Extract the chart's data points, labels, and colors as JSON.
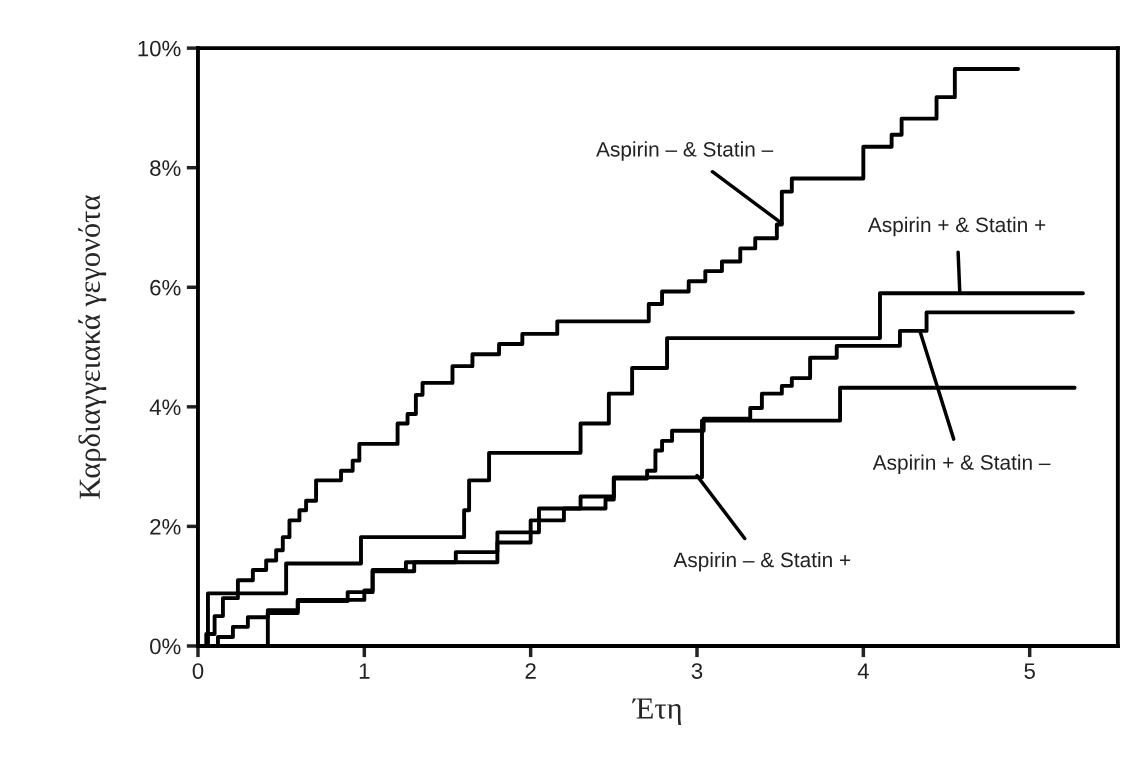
{
  "chart_data": {
    "type": "step",
    "xlabel": "Έτη",
    "ylabel": "Καρδιαγγειακά γεγονότα",
    "xlim": [
      0,
      5.53
    ],
    "xticks": [
      0,
      1,
      2,
      3,
      4,
      5
    ],
    "ylim": [
      0,
      10
    ],
    "yticks": [
      {
        "value": 0,
        "label": "0%"
      },
      {
        "value": 2,
        "label": "2%"
      },
      {
        "value": 4,
        "label": "4%"
      },
      {
        "value": 6,
        "label": "6%"
      },
      {
        "value": 8,
        "label": "8%"
      },
      {
        "value": 10,
        "label": "10%"
      }
    ],
    "grid": false,
    "legend": false,
    "line_style": "solid",
    "marker": "none",
    "series": [
      {
        "color": "#000000",
        "x": [
          0,
          0.05,
          0.1,
          0.15,
          0.24,
          0.33,
          0.41,
          0.47,
          0.51,
          0.55,
          0.61,
          0.65,
          0.71,
          0.86,
          0.93,
          0.97,
          1.2,
          1.26,
          1.31,
          1.35,
          1.53,
          1.65,
          1.81,
          1.95,
          2.16,
          2.71,
          2.79,
          2.95,
          3.05,
          3.15,
          3.26,
          3.35,
          3.48,
          3.51,
          3.57,
          4.0,
          4.17,
          4.23,
          4.44,
          4.55,
          4.93
        ],
        "values": [
          0,
          0.2,
          0.5,
          0.8,
          1.1,
          1.27,
          1.43,
          1.6,
          1.82,
          2.1,
          2.27,
          2.43,
          2.77,
          2.93,
          3.1,
          3.38,
          3.72,
          3.88,
          4.2,
          4.4,
          4.68,
          4.88,
          5.05,
          5.22,
          5.43,
          5.72,
          5.93,
          6.1,
          6.27,
          6.43,
          6.65,
          6.82,
          7.05,
          7.6,
          7.82,
          8.35,
          8.55,
          8.82,
          9.18,
          9.65,
          9.65
        ]
      },
      {
        "color": "#000000",
        "x": [
          0,
          0.06,
          0.53,
          0.98,
          1.6,
          1.63,
          1.75,
          2.3,
          2.47,
          2.61,
          2.82,
          4.1,
          5.32
        ],
        "values": [
          0,
          0.88,
          1.38,
          1.82,
          2.27,
          2.77,
          3.23,
          3.72,
          4.22,
          4.65,
          5.15,
          5.9,
          5.9
        ]
      },
      {
        "color": "#000000",
        "x": [
          0,
          0.12,
          0.21,
          0.3,
          0.42,
          0.6,
          1.0,
          1.05,
          1.25,
          1.55,
          1.8,
          2.0,
          2.2,
          2.45,
          2.5,
          2.7,
          2.75,
          2.79,
          2.85,
          3.04,
          3.32,
          3.39,
          3.51,
          3.57,
          3.68,
          3.84,
          4.22,
          4.38,
          5.26
        ],
        "values": [
          0,
          0.15,
          0.32,
          0.48,
          0.6,
          0.77,
          0.93,
          1.27,
          1.4,
          1.57,
          1.73,
          2.1,
          2.3,
          2.45,
          2.8,
          2.93,
          3.27,
          3.43,
          3.6,
          3.8,
          3.98,
          4.22,
          4.35,
          4.48,
          4.82,
          5.02,
          5.27,
          5.58,
          5.58
        ]
      },
      {
        "color": "#000000",
        "x": [
          0,
          0.42,
          0.6,
          0.9,
          1.05,
          1.3,
          1.8,
          2.05,
          2.3,
          2.5,
          3.03,
          3.86,
          5.27
        ],
        "values": [
          0,
          0.55,
          0.75,
          0.9,
          1.25,
          1.4,
          1.9,
          2.3,
          2.5,
          2.82,
          3.77,
          4.32,
          4.32
        ]
      }
    ],
    "annotations": [
      {
        "text": "Aspirin – & Statin –",
        "x": 3.51,
        "y": 7.07
      },
      {
        "text": "Aspirin + & Statin +",
        "x": 4.58,
        "y": 5.9
      },
      {
        "text": "Aspirin + & Statin –",
        "x": 4.34,
        "y": 5.27
      },
      {
        "text": "Aspirin – & Statin +",
        "x": 3.0,
        "y": 2.85
      }
    ]
  }
}
